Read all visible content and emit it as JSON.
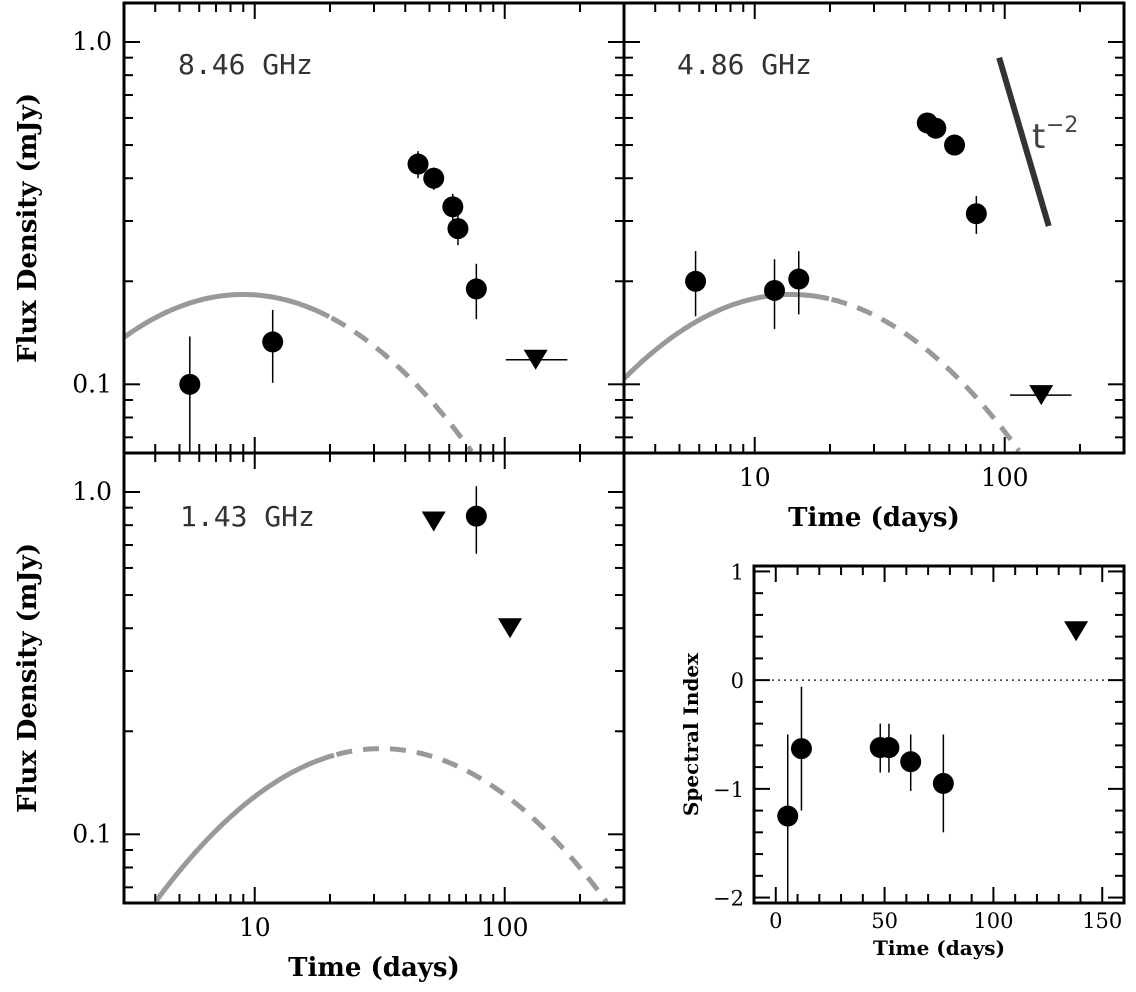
{
  "colors": {
    "data": "#000000",
    "model": "#999999",
    "slope_line": "#333333",
    "zero_line": "#333333"
  },
  "chart_data": [
    {
      "type": "scatter",
      "panel": "top-left",
      "annotation": "8.46 GHz",
      "xscale": "log",
      "yscale": "log",
      "xlim": [
        3,
        300
      ],
      "ylim": [
        0.063,
        1.3
      ],
      "ylabel": "Flux Density (mJy)",
      "xlabel": "",
      "yticks": [
        {
          "value": 1.0,
          "label": "1.0"
        },
        {
          "value": 0.1,
          "label": "0.1"
        }
      ],
      "xticks": [],
      "detections": [
        {
          "t": 5.5,
          "flux": 0.1,
          "err_low": 0.062,
          "err_high": 0.138
        },
        {
          "t": 11.8,
          "flux": 0.133,
          "err_low": 0.101,
          "err_high": 0.165
        },
        {
          "t": 45,
          "flux": 0.44,
          "err_low": 0.4,
          "err_high": 0.48
        },
        {
          "t": 52,
          "flux": 0.4,
          "err_low": 0.37,
          "err_high": 0.43
        },
        {
          "t": 62,
          "flux": 0.33,
          "err_low": 0.3,
          "err_high": 0.36
        },
        {
          "t": 65,
          "flux": 0.285,
          "err_low": 0.255,
          "err_high": 0.315
        },
        {
          "t": 77,
          "flux": 0.19,
          "err_low": 0.155,
          "err_high": 0.225
        }
      ],
      "upper_limits": [
        {
          "t": 133,
          "flux": 0.118,
          "t_low": 101,
          "t_high": 178
        }
      ],
      "model": {
        "peak_t": 9.0,
        "peak_flux": 0.183,
        "solid_until": 20
      }
    },
    {
      "type": "scatter",
      "panel": "top-right",
      "annotation": "4.86 GHz",
      "xscale": "log",
      "yscale": "log",
      "xlim": [
        3,
        300
      ],
      "ylim": [
        0.063,
        1.3
      ],
      "xlabel": "Time (days)",
      "ylabel": "",
      "xticks": [
        {
          "value": 10,
          "label": "10"
        },
        {
          "value": 100,
          "label": "100"
        }
      ],
      "yticks": [],
      "detections": [
        {
          "t": 5.8,
          "flux": 0.2,
          "err_low": 0.158,
          "err_high": 0.245
        },
        {
          "t": 12,
          "flux": 0.188,
          "err_low": 0.145,
          "err_high": 0.232
        },
        {
          "t": 15,
          "flux": 0.203,
          "err_low": 0.16,
          "err_high": 0.245
        },
        {
          "t": 49,
          "flux": 0.58,
          "err_low": 0.55,
          "err_high": 0.61
        },
        {
          "t": 53,
          "flux": 0.56,
          "err_low": 0.53,
          "err_high": 0.59
        },
        {
          "t": 63,
          "flux": 0.5,
          "err_low": 0.47,
          "err_high": 0.53
        },
        {
          "t": 77,
          "flux": 0.315,
          "err_low": 0.275,
          "err_high": 0.355
        }
      ],
      "upper_limits": [
        {
          "t": 140,
          "flux": 0.093,
          "t_low": 105,
          "t_high": 185
        }
      ],
      "model": {
        "peak_t": 14.0,
        "peak_flux": 0.183,
        "solid_until": 20
      },
      "slope_annotation": {
        "text": "t",
        "exponent": "−2",
        "t_start": 95,
        "flux_start": 0.9,
        "t_end": 150,
        "flux_end": 0.29
      }
    },
    {
      "type": "scatter",
      "panel": "bottom-left",
      "annotation": "1.43 GHz",
      "xscale": "log",
      "yscale": "log",
      "xlim": [
        3,
        300
      ],
      "ylim": [
        0.063,
        1.3
      ],
      "xlabel": "Time (days)",
      "ylabel": "Flux Density (mJy)",
      "xticks": [
        {
          "value": 10,
          "label": "10"
        },
        {
          "value": 100,
          "label": "100"
        }
      ],
      "yticks": [
        {
          "value": 1.0,
          "label": "1.0"
        },
        {
          "value": 0.1,
          "label": "0.1"
        }
      ],
      "detections": [
        {
          "t": 77,
          "flux": 0.85,
          "err_low": 0.66,
          "err_high": 1.04
        }
      ],
      "upper_limits": [
        {
          "t": 52,
          "flux": 0.82
        },
        {
          "t": 105,
          "flux": 0.4
        }
      ],
      "model": {
        "peak_t": 32.0,
        "peak_flux": 0.178,
        "solid_until": 21
      }
    },
    {
      "type": "scatter",
      "panel": "bottom-right",
      "xscale": "linear",
      "yscale": "linear",
      "xlim": [
        -10,
        160
      ],
      "ylim": [
        -2.05,
        1.05
      ],
      "xlabel": "Time (days)",
      "ylabel": "Spectral Index",
      "xticks": [
        {
          "value": 0,
          "label": "0"
        },
        {
          "value": 50,
          "label": "50"
        },
        {
          "value": 100,
          "label": "100"
        },
        {
          "value": 150,
          "label": "150"
        }
      ],
      "yticks": [
        {
          "value": 1,
          "label": "1"
        },
        {
          "value": 0,
          "label": "0"
        },
        {
          "value": -1,
          "label": "−1"
        },
        {
          "value": -2,
          "label": "−2"
        }
      ],
      "reference_line": 0,
      "detections": [
        {
          "t": 5.5,
          "alpha": -1.25,
          "err_low": -2.05,
          "err_high": -0.5
        },
        {
          "t": 11.8,
          "alpha": -0.63,
          "err_low": -1.2,
          "err_high": -0.06
        },
        {
          "t": 48,
          "alpha": -0.62,
          "err_low": -0.85,
          "err_high": -0.4
        },
        {
          "t": 52,
          "alpha": -0.62,
          "err_low": -0.85,
          "err_high": -0.4
        },
        {
          "t": 62,
          "alpha": -0.75,
          "err_low": -1.02,
          "err_high": -0.5
        },
        {
          "t": 77,
          "alpha": -0.95,
          "err_low": -1.4,
          "err_high": -0.5
        }
      ],
      "lower_limits": [
        {
          "t": 138,
          "alpha": 0.45
        }
      ]
    }
  ]
}
